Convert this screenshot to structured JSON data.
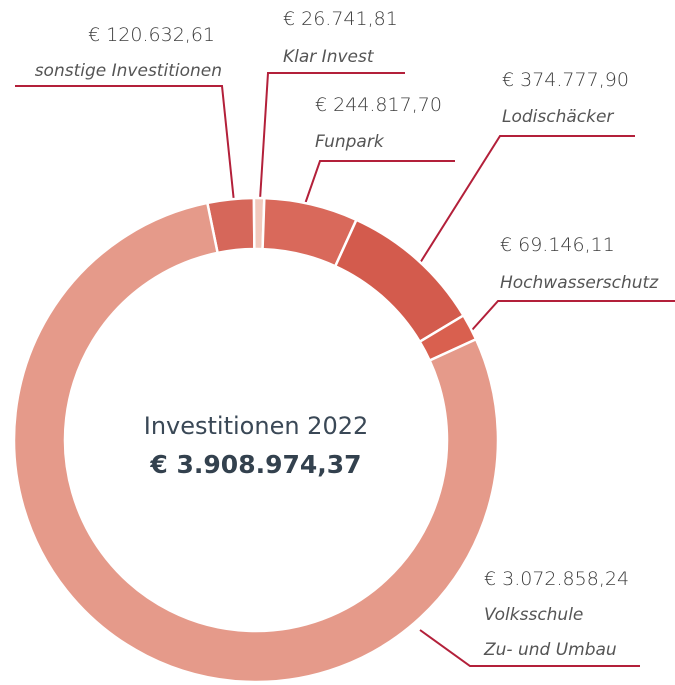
{
  "chart_data": {
    "type": "donut",
    "center_title": "Investitionen 2022",
    "total": 3908974.37,
    "total_label": "€ 3.908.974,37",
    "categories": [
      "sonstige Investitionen",
      "Klar Invest",
      "Funpark",
      "Lodischäcker",
      "Hochwasserschutz",
      "Volksschule\nZu- und Umbau"
    ],
    "values": [
      120632.61,
      26741.81,
      244817.7,
      374777.9,
      69146.11,
      3072858.24
    ],
    "value_labels": [
      "€ 120.632,61",
      "€ 26.741,81",
      "€ 244.817,70",
      "€ 374.777,90",
      "€ 69.146,11",
      "€ 3.072.858,24"
    ],
    "colors": [
      "#d6675a",
      "#f1c9bd",
      "#d9695b",
      "#d35b4d",
      "#d9604f",
      "#e59a8a"
    ]
  }
}
